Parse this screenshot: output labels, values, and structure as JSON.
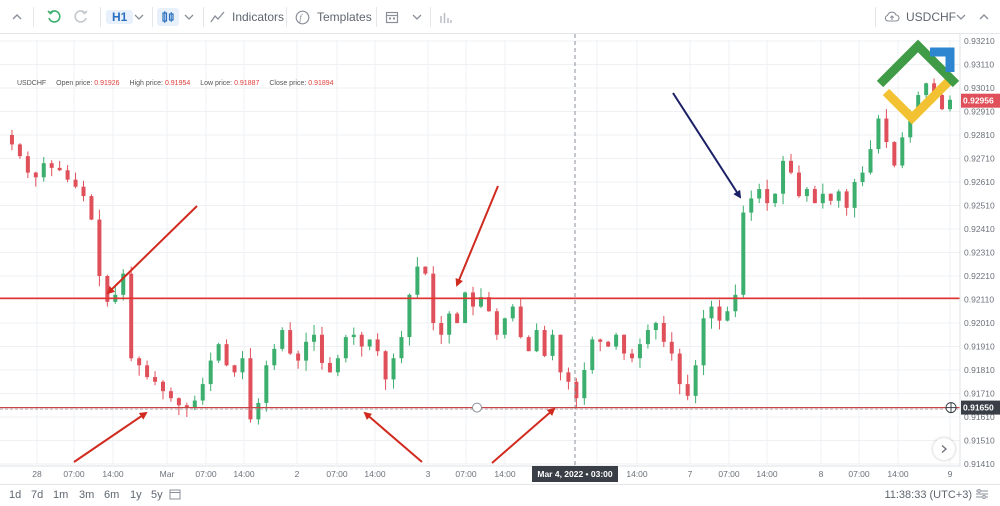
{
  "toolbar": {
    "timeframe": "H1",
    "indicators_label": "Indicators",
    "templates_label": "Templates",
    "symbol": "USDCHF"
  },
  "legend": {
    "symbol": "USDCHF",
    "open_label": "Open price:",
    "open_value": "0.91926",
    "high_label": "High price:",
    "high_value": "0.91954",
    "low_label": "Low price:",
    "low_value": "0.91887",
    "close_label": "Close price:",
    "close_value": "0.91894"
  },
  "chart_data": {
    "type": "candlestick",
    "symbol": "USDCHF",
    "timeframe": "H1",
    "y_ticks": [
      "0.93210",
      "0.93110",
      "0.93010",
      "0.92910",
      "0.92810",
      "0.92710",
      "0.92610",
      "0.92510",
      "0.92410",
      "0.92310",
      "0.92210",
      "0.92110",
      "0.92010",
      "0.91910",
      "0.91810",
      "0.91710",
      "0.91610",
      "0.91510",
      "0.91410"
    ],
    "ylim": [
      0.9141,
      0.9321
    ],
    "x_ticks": [
      "28",
      "07:00",
      "14:00",
      "Mar",
      "07:00",
      "14:00",
      "2",
      "07:00",
      "14:00",
      "3",
      "07:00",
      "14:00",
      "07:00",
      "14:00",
      "7",
      "07:00",
      "14:00",
      "8",
      "07:00",
      "14:00",
      "9"
    ],
    "crosshair_label": "Mar 4, 2022 • 03:00",
    "current_price": "0.92956",
    "support_level": "0.91650",
    "resistance_level": 0.92115,
    "colors": {
      "up": "#3cae6e",
      "down": "#e0505a",
      "resistance": "#e3322f",
      "support": "#c94545",
      "arrow_red": "#d12a1f",
      "arrow_blue": "#1a1f66",
      "current_tag": "#e0505a",
      "support_tag": "#3a3f47"
    },
    "grid": true,
    "close_path": [
      0.9281,
      0.9277,
      0.9272,
      0.9265,
      0.9263,
      0.9269,
      0.9267,
      0.9266,
      0.9262,
      0.9259,
      0.9255,
      0.9245,
      0.9221,
      0.921,
      0.9213,
      0.9222,
      0.9186,
      0.9183,
      0.9178,
      0.9176,
      0.9172,
      0.9169,
      0.9166,
      0.9165,
      0.9168,
      0.9175,
      0.9185,
      0.9192,
      0.9183,
      0.918,
      0.9186,
      0.916,
      0.9167,
      0.9183,
      0.919,
      0.9198,
      0.9188,
      0.9185,
      0.9193,
      0.9196,
      0.9184,
      0.918,
      0.9186,
      0.9195,
      0.9196,
      0.9191,
      0.9194,
      0.9189,
      0.9177,
      0.9186,
      0.9195,
      0.9213,
      0.9225,
      0.9222,
      0.9201,
      0.9196,
      0.9205,
      0.9201,
      0.9214,
      0.9208,
      0.9212,
      0.9206,
      0.9196,
      0.9203,
      0.9208,
      0.9195,
      0.9189,
      0.9198,
      0.9187,
      0.9196,
      0.918,
      0.9176,
      0.9169,
      0.9181,
      0.9194,
      0.9193,
      0.9191,
      0.9196,
      0.9188,
      0.9186,
      0.9192,
      0.9198,
      0.9201,
      0.9193,
      0.9188,
      0.9175,
      0.917,
      0.9183,
      0.9203,
      0.9208,
      0.9202,
      0.9206,
      0.9213,
      0.9248,
      0.9254,
      0.9258,
      0.9252,
      0.9256,
      0.927,
      0.9265,
      0.9255,
      0.9258,
      0.9252,
      0.9256,
      0.9253,
      0.9257,
      0.925,
      0.9261,
      0.9265,
      0.9275,
      0.9288,
      0.9278,
      0.9268,
      0.928,
      0.929,
      0.9298,
      0.9303,
      0.9298,
      0.9292,
      0.9296
    ]
  },
  "bottom": {
    "periods": [
      "1d",
      "7d",
      "1m",
      "3m",
      "6m",
      "1y",
      "5y"
    ],
    "clock": "11:38:33 (UTC+3)"
  }
}
